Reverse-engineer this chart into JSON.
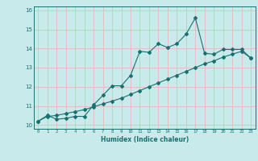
{
  "title": "",
  "xlabel": "Humidex (Indice chaleur)",
  "ylabel": "",
  "background_color": "#c8eaea",
  "grid_color": "#e8b8b8",
  "line_color": "#1a7070",
  "xlim": [
    -0.5,
    23.5
  ],
  "ylim": [
    9.8,
    16.2
  ],
  "x_ticks": [
    0,
    1,
    2,
    3,
    4,
    5,
    6,
    7,
    8,
    9,
    10,
    11,
    12,
    13,
    14,
    15,
    16,
    17,
    18,
    19,
    20,
    21,
    22,
    23
  ],
  "y_ticks": [
    10,
    11,
    12,
    13,
    14,
    15,
    16
  ],
  "series1_x": [
    0,
    1,
    2,
    3,
    4,
    5,
    6,
    7,
    8,
    9,
    10,
    11,
    12,
    13,
    14,
    15,
    16,
    17,
    18,
    19,
    20,
    21,
    22,
    23
  ],
  "series1_y": [
    10.2,
    10.5,
    10.3,
    10.35,
    10.45,
    10.45,
    11.05,
    11.55,
    12.05,
    12.05,
    12.6,
    13.85,
    13.8,
    14.25,
    14.05,
    14.25,
    14.75,
    15.6,
    13.75,
    13.7,
    13.95,
    13.95,
    13.95,
    13.5
  ],
  "series2_x": [
    0,
    1,
    2,
    3,
    4,
    5,
    6,
    7,
    8,
    9,
    10,
    11,
    12,
    13,
    14,
    15,
    16,
    17,
    18,
    19,
    20,
    21,
    22,
    23
  ],
  "series2_y": [
    10.2,
    10.45,
    10.5,
    10.6,
    10.7,
    10.8,
    10.95,
    11.1,
    11.25,
    11.4,
    11.6,
    11.8,
    12.0,
    12.2,
    12.4,
    12.6,
    12.8,
    13.0,
    13.2,
    13.35,
    13.55,
    13.7,
    13.85,
    13.5
  ]
}
